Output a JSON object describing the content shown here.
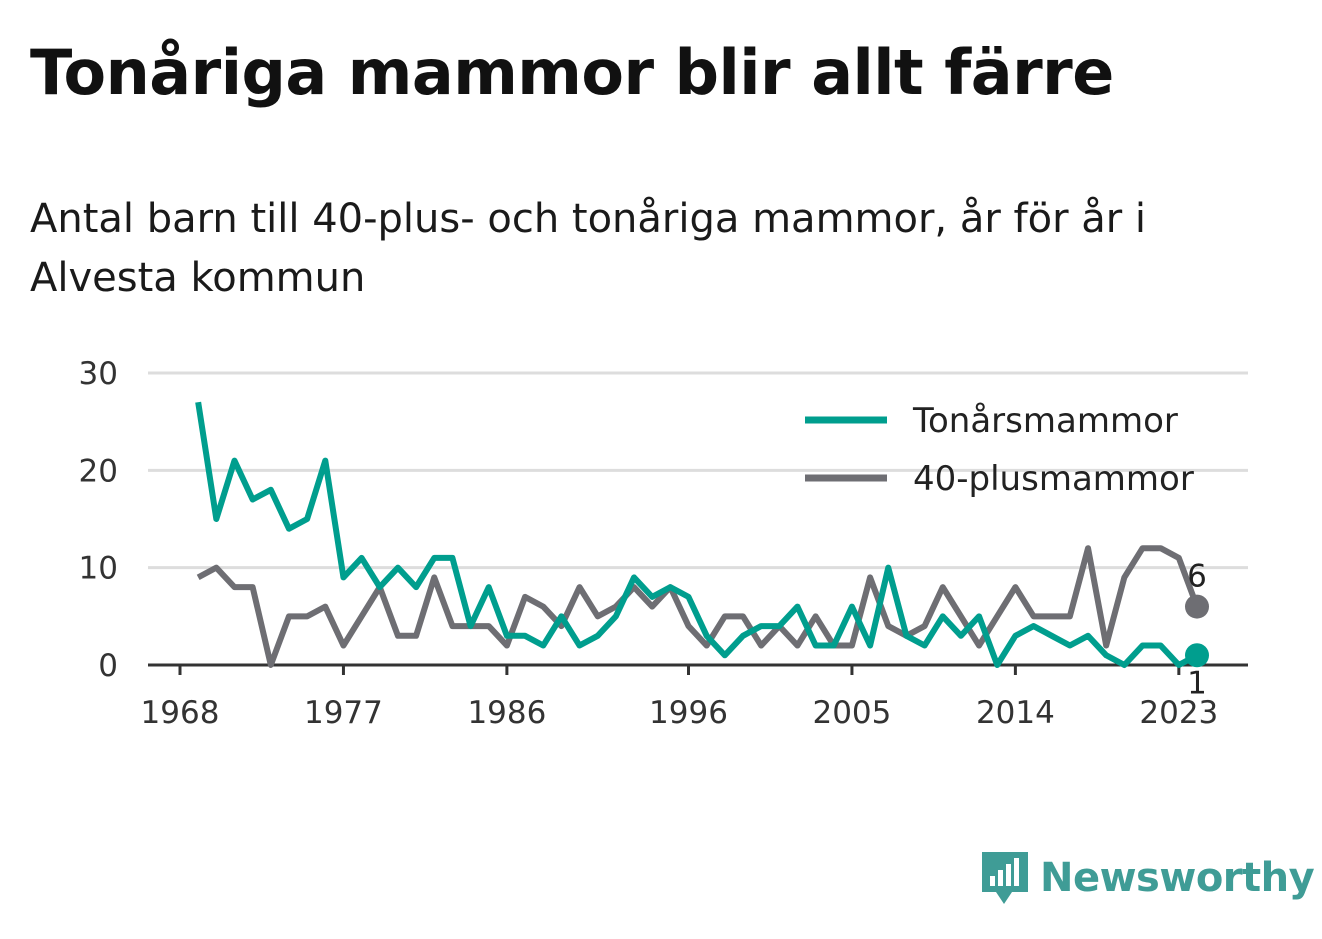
{
  "title": "Tonåriga mammor blir allt färre",
  "subtitle": "Antal barn till 40-plus- och tonåriga mammor, år för år i Alvesta kommun",
  "brand": {
    "name": "Newsworthy",
    "icon": "newsworthy-logo-icon",
    "color": "#3f9c96"
  },
  "chart_data": {
    "type": "line",
    "x": [
      1969,
      1970,
      1971,
      1972,
      1973,
      1974,
      1975,
      1976,
      1977,
      1978,
      1979,
      1980,
      1981,
      1982,
      1983,
      1984,
      1985,
      1986,
      1987,
      1988,
      1989,
      1990,
      1991,
      1992,
      1993,
      1994,
      1995,
      1996,
      1997,
      1998,
      1999,
      2000,
      2001,
      2002,
      2003,
      2004,
      2005,
      2006,
      2007,
      2008,
      2009,
      2010,
      2011,
      2012,
      2013,
      2014,
      2015,
      2016,
      2017,
      2018,
      2019,
      2020,
      2021,
      2022,
      2023,
      2024
    ],
    "series": [
      {
        "name": "Tonårsmammor",
        "color": "#009e8e",
        "values": [
          27,
          15,
          21,
          17,
          18,
          14,
          15,
          21,
          9,
          11,
          8,
          10,
          8,
          11,
          11,
          4,
          8,
          3,
          3,
          2,
          5,
          2,
          3,
          5,
          9,
          7,
          8,
          7,
          3,
          1,
          3,
          4,
          4,
          6,
          2,
          2,
          6,
          2,
          10,
          3,
          2,
          5,
          3,
          5,
          0,
          3,
          4,
          3,
          2,
          3,
          1,
          0,
          2,
          2,
          0,
          1
        ],
        "end_label": "1"
      },
      {
        "name": "40-plusmammor",
        "color": "#6e6e73",
        "values": [
          9,
          10,
          8,
          8,
          0,
          5,
          5,
          6,
          2,
          5,
          8,
          3,
          3,
          9,
          4,
          4,
          4,
          2,
          7,
          6,
          4,
          8,
          5,
          6,
          8,
          6,
          8,
          4,
          2,
          5,
          5,
          2,
          4,
          2,
          5,
          2,
          2,
          9,
          4,
          3,
          4,
          8,
          5,
          2,
          5,
          8,
          5,
          5,
          5,
          12,
          2,
          9,
          12,
          12,
          11,
          6
        ],
        "end_label": "6"
      }
    ],
    "x_ticks": [
      "1968",
      "1977",
      "1986",
      "1996",
      "2005",
      "2014",
      "2023"
    ],
    "y_ticks": [
      "0",
      "10",
      "20",
      "30"
    ],
    "ylim": [
      0,
      30
    ],
    "grid": true,
    "legend_position": "top-right"
  }
}
